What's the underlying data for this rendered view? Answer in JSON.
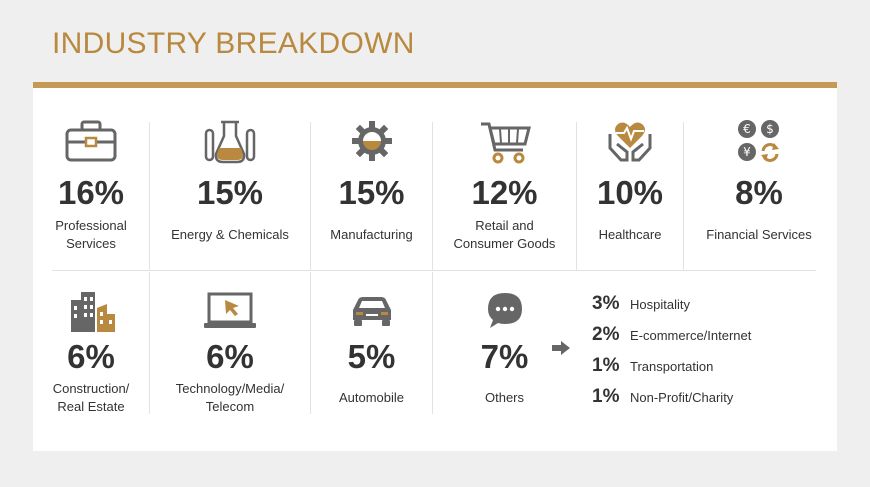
{
  "title": "INDUSTRY BREAKDOWN",
  "colors": {
    "accent": "#c49a55",
    "icon": "#666666",
    "dark": "#333333"
  },
  "row1": [
    {
      "pct": "16%",
      "label": "Professional\nServices",
      "icon": "briefcase-icon"
    },
    {
      "pct": "15%",
      "label": "Energy & Chemicals",
      "icon": "lab-flask-icon"
    },
    {
      "pct": "15%",
      "label": "Manufacturing",
      "icon": "gear-icon"
    },
    {
      "pct": "12%",
      "label": "Retail and\nConsumer Goods",
      "icon": "shopping-cart-icon"
    },
    {
      "pct": "10%",
      "label": "Healthcare",
      "icon": "heart-hands-icon"
    },
    {
      "pct": "8%",
      "label": "Financial Services",
      "icon": "currency-icon"
    }
  ],
  "row2": [
    {
      "pct": "6%",
      "label": "Construction/\nReal Estate",
      "icon": "buildings-icon"
    },
    {
      "pct": "6%",
      "label": "Technology/Media/\nTelecom",
      "icon": "laptop-icon"
    },
    {
      "pct": "5%",
      "label": "Automobile",
      "icon": "car-icon"
    },
    {
      "pct": "7%",
      "label": "Others",
      "icon": "chat-bubble-icon"
    }
  ],
  "others_breakdown": [
    {
      "pct": "3%",
      "label": "Hospitality"
    },
    {
      "pct": "2%",
      "label": "E-commerce/Internet"
    },
    {
      "pct": "1%",
      "label": "Transportation"
    },
    {
      "pct": "1%",
      "label": "Non-Profit/Charity"
    }
  ]
}
